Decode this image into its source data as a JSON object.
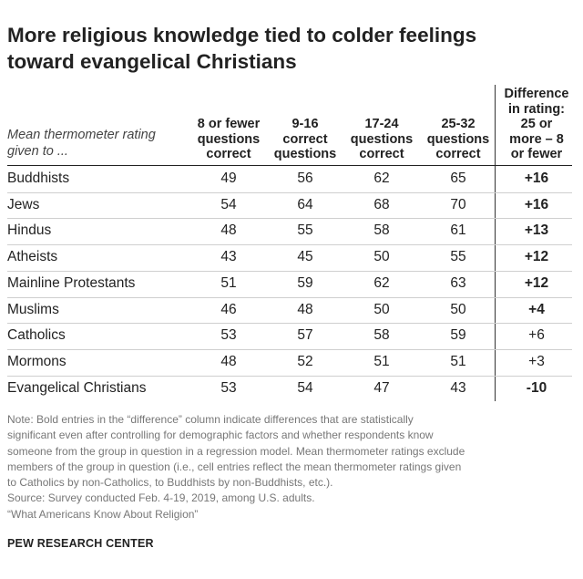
{
  "title_lines": [
    "More religious knowledge tied to colder feelings",
    "toward evangelical Christians"
  ],
  "column_headers": [
    {
      "lines": [
        "8 or fewer",
        "questions",
        "correct"
      ]
    },
    {
      "lines": [
        "9-16",
        "correct",
        "questions"
      ]
    },
    {
      "lines": [
        "17-24",
        "questions",
        "correct"
      ]
    },
    {
      "lines": [
        "25-32",
        "questions",
        "correct"
      ]
    }
  ],
  "difference_header": [
    "Difference",
    "in rating:",
    "25 or",
    "more – 8",
    "or fewer"
  ],
  "row_header": [
    "Mean thermometer rating",
    "given to ..."
  ],
  "chart_data": {
    "type": "table",
    "title": "More religious knowledge tied to colder feelings toward evangelical Christians",
    "columns": [
      "8 or fewer questions correct",
      "9-16 correct questions",
      "17-24 questions correct",
      "25-32 questions correct",
      "Difference in rating: 25 or more – 8 or fewer"
    ],
    "rows": [
      {
        "group": "Buddhists",
        "values": [
          "49",
          "56",
          "62",
          "65"
        ],
        "difference": "+16",
        "significant": true
      },
      {
        "group": "Jews",
        "values": [
          "54",
          "64",
          "68",
          "70"
        ],
        "difference": "+16",
        "significant": true
      },
      {
        "group": "Hindus",
        "values": [
          "48",
          "55",
          "58",
          "61"
        ],
        "difference": "+13",
        "significant": true
      },
      {
        "group": "Atheists",
        "values": [
          "43",
          "45",
          "50",
          "55"
        ],
        "difference": "+12",
        "significant": true
      },
      {
        "group": "Mainline Protestants",
        "values": [
          "51",
          "59",
          "62",
          "63"
        ],
        "difference": "+12",
        "significant": true
      },
      {
        "group": "Muslims",
        "values": [
          "46",
          "48",
          "50",
          "50"
        ],
        "difference": "+4",
        "significant": true
      },
      {
        "group": "Catholics",
        "values": [
          "53",
          "57",
          "58",
          "59"
        ],
        "difference": "+6",
        "significant": false
      },
      {
        "group": "Mormons",
        "values": [
          "48",
          "52",
          "51",
          "51"
        ],
        "difference": "+3",
        "significant": false
      },
      {
        "group": "Evangelical Christians",
        "values": [
          "53",
          "54",
          "47",
          "43"
        ],
        "difference": "-10",
        "significant": true
      }
    ]
  },
  "note_lines": [
    "Note: Bold entries in the “difference” column indicate differences that are statistically",
    "significant even after controlling for demographic factors and whether respondents know",
    "someone from the group in question in a regression model. Mean thermometer ratings exclude",
    "members of the group in question (i.e., cell entries reflect the mean thermometer ratings given",
    "to Catholics by non-Catholics, to Buddhists by non-Buddhists, etc.).",
    "Source: Survey conducted Feb. 4-19, 2019, among U.S. adults.",
    "“What Americans Know About Religion”"
  ],
  "brand": "PEW RESEARCH CENTER"
}
